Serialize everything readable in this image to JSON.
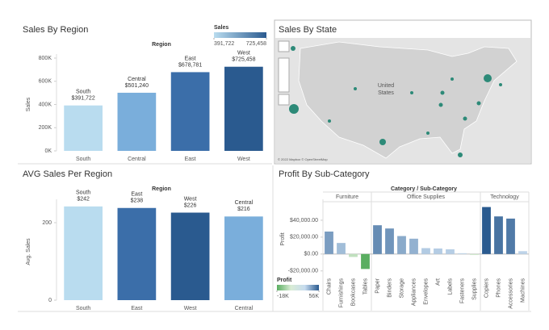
{
  "chart_data": [
    {
      "type": "bar",
      "title": "Sales By Region",
      "header": "Region",
      "y_label": "Sales",
      "categories": [
        "South",
        "Central",
        "East",
        "West"
      ],
      "values": [
        391722,
        501240,
        678781,
        725458
      ],
      "value_labels": [
        "$391,722",
        "$501,240",
        "$678,781",
        "$725,458"
      ],
      "colors": [
        "#b9dcef",
        "#7aaedb",
        "#3b6ea9",
        "#2a5a8f"
      ],
      "ylim": [
        0,
        800000
      ],
      "yticks": [
        {
          "value": 0,
          "label": "0K"
        },
        {
          "value": 200000,
          "label": "200K"
        },
        {
          "value": 400000,
          "label": "400K"
        },
        {
          "value": 600000,
          "label": "600K"
        },
        {
          "value": 800000,
          "label": "800K"
        }
      ],
      "legend": {
        "title": "Sales",
        "colors": [
          "#b9dcef",
          "#2a5a8f"
        ],
        "ticks": [
          {
            "value": 391722,
            "label": "391,722"
          },
          {
            "value": 725458,
            "label": "725,458"
          }
        ]
      }
    },
    {
      "type": "bar",
      "title": "AVG Sales Per Region",
      "header": "Region",
      "y_label": "Avg. Sales",
      "categories": [
        "South",
        "East",
        "West",
        "Central"
      ],
      "values": [
        242,
        238,
        226,
        216
      ],
      "value_labels": [
        "$242",
        "$238",
        "$226",
        "$216"
      ],
      "colors": [
        "#b9dcef",
        "#3b6ea9",
        "#2a5a8f",
        "#7aaedb"
      ],
      "ylim": [
        0,
        250
      ],
      "yticks": [
        0,
        200
      ]
    },
    {
      "type": "bar",
      "title": "Profit By Sub-Category",
      "header": "Category / Sub-Category",
      "y_label": "Profit",
      "groups": [
        {
          "name": "Furniture",
          "categories": [
            "Chairs",
            "Furnishings",
            "Bookcases",
            "Tables"
          ]
        },
        {
          "name": "Office Supplies",
          "categories": [
            "Paper",
            "Binders",
            "Storage",
            "Appliances",
            "Envelopes",
            "Art",
            "Labels",
            "Fasteners",
            "Supplies"
          ]
        },
        {
          "name": "Technology",
          "categories": [
            "Copiers",
            "Phones",
            "Accessories",
            "Machines"
          ]
        }
      ],
      "values": [
        26590,
        13059,
        -3473,
        -17725,
        34054,
        30222,
        21279,
        18138,
        6964,
        6528,
        5546,
        950,
        -1189,
        55618,
        44516,
        41937,
        3385
      ],
      "ylim": [
        -25000,
        60000
      ],
      "yticks": [
        {
          "value": -20000,
          "label": "-$20,000.00"
        },
        {
          "value": 0,
          "label": "$0.00"
        },
        {
          "value": 20000,
          "label": "$20,000.00"
        },
        {
          "value": 40000,
          "label": "$40,000.00"
        }
      ],
      "legend": {
        "title": "Profit",
        "colors": [
          "#5aae61",
          "#d9ecd5",
          "#c6dbef",
          "#2a5a8f"
        ],
        "ticks": [
          {
            "value": -17725,
            "label": "-18K"
          },
          {
            "value": 55618,
            "label": "56K"
          }
        ]
      }
    }
  ],
  "map": {
    "title": "Sales By State",
    "label": [
      "United",
      "States"
    ],
    "attribution": "© 2022 Mapbox © OpenStreetMap"
  }
}
